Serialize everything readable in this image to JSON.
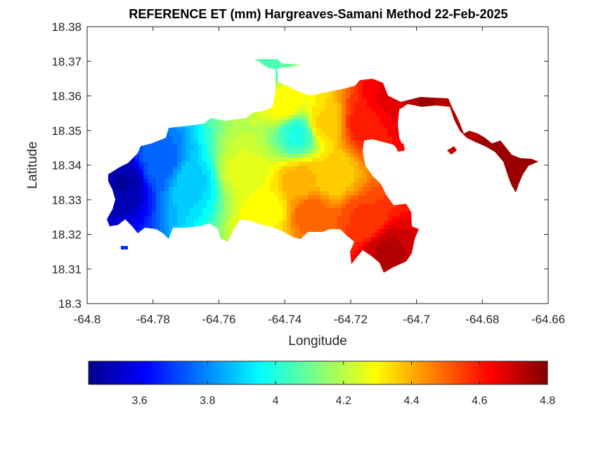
{
  "chart_data": {
    "type": "heatmap",
    "title": "REFERENCE ET (mm) Hargreaves-Samani Method  22-Feb-2025",
    "xlabel": "Longitude",
    "ylabel": "Latitude",
    "xlim": [
      -64.8,
      -64.66
    ],
    "ylim": [
      18.3,
      18.38
    ],
    "xticks": [
      "-64.8",
      "-64.78",
      "-64.76",
      "-64.74",
      "-64.72",
      "-64.7",
      "-64.68",
      "-64.66"
    ],
    "yticks": [
      "18.3",
      "18.31",
      "18.32",
      "18.33",
      "18.34",
      "18.35",
      "18.36",
      "18.37",
      "18.38"
    ],
    "grid": false,
    "colormap": "jet",
    "colorbar": {
      "position": "bottom",
      "range": [
        3.45,
        4.8
      ],
      "ticks": [
        "3.6",
        "3.8",
        "4",
        "4.2",
        "4.4",
        "4.6",
        "4.8"
      ]
    },
    "hotspots": [
      {
        "lon": -64.789,
        "lat": 18.3352,
        "value": 3.5
      },
      {
        "lon": -64.778,
        "lat": 18.3405,
        "value": 3.75
      },
      {
        "lon": -64.768,
        "lat": 18.335,
        "value": 3.9
      },
      {
        "lon": -64.746,
        "lat": 18.369,
        "value": 4.05
      },
      {
        "lon": -64.736,
        "lat": 18.349,
        "value": 4.0
      },
      {
        "lon": -64.753,
        "lat": 18.338,
        "value": 4.25
      },
      {
        "lon": -64.745,
        "lat": 18.327,
        "value": 4.3
      },
      {
        "lon": -64.735,
        "lat": 18.335,
        "value": 4.4
      },
      {
        "lon": -64.726,
        "lat": 18.337,
        "value": 4.35
      },
      {
        "lon": -64.728,
        "lat": 18.352,
        "value": 4.35
      },
      {
        "lon": -64.732,
        "lat": 18.326,
        "value": 4.5
      },
      {
        "lon": -64.74,
        "lat": 18.358,
        "value": 4.3
      },
      {
        "lon": -64.716,
        "lat": 18.352,
        "value": 4.6
      },
      {
        "lon": -64.709,
        "lat": 18.359,
        "value": 4.65
      },
      {
        "lon": -64.698,
        "lat": 18.357,
        "value": 4.75
      },
      {
        "lon": -64.671,
        "lat": 18.337,
        "value": 4.78
      },
      {
        "lon": -64.709,
        "lat": 18.315,
        "value": 4.72
      },
      {
        "lon": -64.716,
        "lat": 18.324,
        "value": 4.55
      }
    ]
  }
}
